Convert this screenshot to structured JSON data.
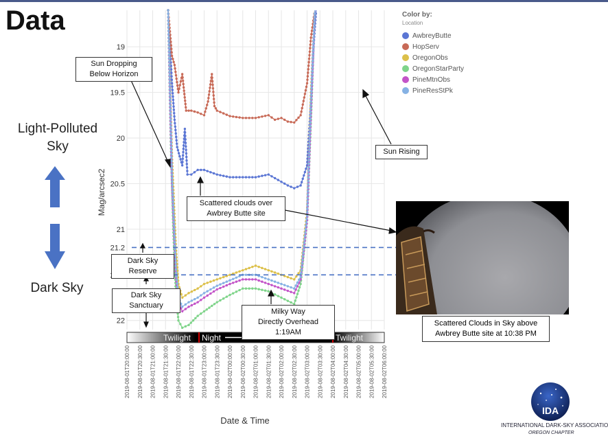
{
  "slide": {
    "title": "Data",
    "left_labels": {
      "top": "Light-Polluted\nSky",
      "bottom": "Dark Sky"
    }
  },
  "callouts": {
    "sun_dropping": "Sun Dropping\nBelow Horizon",
    "sun_rising": "Sun Rising",
    "clouds": "Scattered clouds over\nAwbrey Butte site",
    "reserve": "Dark Sky Reserve",
    "sanctuary": "Dark Sky Sanctuary",
    "milky_way": "Milky Way\nDirectly Overhead 1:19AM",
    "photo_caption": "Scattered Clouds in Sky above\nAwbrey Butte site at 10:38 PM"
  },
  "twilight_bar": {
    "left": "Twilight",
    "middle": "Night",
    "right": "Twilight"
  },
  "thresholds": [
    {
      "label": "21.2",
      "value": 21.2
    },
    {
      "label": "21.5",
      "value": 21.5
    }
  ],
  "logo": {
    "abbr": "IDA",
    "name": "INTERNATIONAL DARK-SKY ASSOCIATION",
    "chapter": "OREGON CHAPTER"
  },
  "colors": {
    "AwbreyButte": "#5b76d4",
    "HopServ": "#c86a57",
    "OregonObs": "#dcc04a",
    "OregonStarParty": "#7fd48a",
    "PineMtnObs": "#c354c8",
    "PineResStPk": "#86b2e4",
    "threshold": "#4a72c4"
  },
  "chart_data": {
    "type": "line",
    "xlabel": "Date & Time",
    "ylabel": "Mag/arcsec2",
    "y_axis": "inverted",
    "ylim": [
      18.6,
      22.1
    ],
    "yticks": [
      19,
      19.5,
      20,
      20.5,
      21,
      22
    ],
    "legend": {
      "title": "Color by:",
      "subtitle": "Location",
      "position": "top-right"
    },
    "x": [
      "2019-08-01T20:00:00",
      "2019-08-01T20:30:00",
      "2019-08-01T21:00:00",
      "2019-08-01T21:30:00",
      "2019-08-01T22:00:00",
      "2019-08-01T22:30:00",
      "2019-08-01T23:00:00",
      "2019-08-01T23:30:00",
      "2019-08-02T00:00:00",
      "2019-08-02T00:30:00",
      "2019-08-02T01:00:00",
      "2019-08-02T01:30:00",
      "2019-08-02T02:00:00",
      "2019-08-02T02:30:00",
      "2019-08-02T03:00:00",
      "2019-08-02T03:30:00",
      "2019-08-02T04:00:00",
      "2019-08-02T04:30:00",
      "2019-08-02T05:00:00",
      "2019-08-02T05:30:00",
      "2019-08-02T06:00:00"
    ],
    "series": [
      {
        "name": "AwbreyButte",
        "color": "#5b76d4",
        "points": [
          [
            3.2,
            18.6
          ],
          [
            3.5,
            19.4
          ],
          [
            3.7,
            19.8
          ],
          [
            3.9,
            20.1
          ],
          [
            4.1,
            20.2
          ],
          [
            4.3,
            20.3
          ],
          [
            4.5,
            19.9
          ],
          [
            4.7,
            20.4
          ],
          [
            5,
            20.4
          ],
          [
            5.5,
            20.35
          ],
          [
            6,
            20.35
          ],
          [
            7,
            20.4
          ],
          [
            8,
            20.43
          ],
          [
            9,
            20.43
          ],
          [
            10,
            20.43
          ],
          [
            11,
            20.4
          ],
          [
            11.5,
            20.44
          ],
          [
            12,
            20.48
          ],
          [
            12.5,
            20.52
          ],
          [
            13,
            20.55
          ],
          [
            13.5,
            20.52
          ],
          [
            14,
            20.3
          ],
          [
            14.3,
            19.6
          ],
          [
            14.5,
            19
          ],
          [
            14.7,
            18.6
          ]
        ]
      },
      {
        "name": "HopServ",
        "color": "#c86a57",
        "points": [
          [
            3.2,
            18.6
          ],
          [
            3.5,
            19.1
          ],
          [
            3.7,
            19.2
          ],
          [
            4,
            19.5
          ],
          [
            4.3,
            19.3
          ],
          [
            4.6,
            19.7
          ],
          [
            5,
            19.7
          ],
          [
            5.5,
            19.72
          ],
          [
            6,
            19.75
          ],
          [
            6.3,
            19.6
          ],
          [
            6.6,
            19.3
          ],
          [
            6.8,
            19.65
          ],
          [
            7,
            19.7
          ],
          [
            8,
            19.76
          ],
          [
            9,
            19.78
          ],
          [
            10,
            19.78
          ],
          [
            11,
            19.75
          ],
          [
            11.5,
            19.8
          ],
          [
            12,
            19.78
          ],
          [
            12.5,
            19.82
          ],
          [
            13,
            19.83
          ],
          [
            13.5,
            19.75
          ],
          [
            14,
            19.4
          ],
          [
            14.3,
            18.9
          ],
          [
            14.6,
            18.6
          ]
        ]
      },
      {
        "name": "OregonObs",
        "color": "#dcc04a",
        "points": [
          [
            3.2,
            18.6
          ],
          [
            3.5,
            20.2
          ],
          [
            3.8,
            21.2
          ],
          [
            4,
            21.6
          ],
          [
            4.3,
            21.75
          ],
          [
            4.8,
            21.7
          ],
          [
            5.5,
            21.65
          ],
          [
            6,
            21.6
          ],
          [
            7,
            21.55
          ],
          [
            8,
            21.5
          ],
          [
            9,
            21.45
          ],
          [
            10,
            21.4
          ],
          [
            11,
            21.45
          ],
          [
            12,
            21.5
          ],
          [
            13,
            21.55
          ],
          [
            13.5,
            21.45
          ],
          [
            14,
            20.8
          ],
          [
            14.3,
            19.5
          ],
          [
            14.6,
            18.6
          ]
        ]
      },
      {
        "name": "OregonStarParty",
        "color": "#7fd48a",
        "points": [
          [
            3.2,
            18.6
          ],
          [
            3.4,
            20
          ],
          [
            3.6,
            21
          ],
          [
            3.8,
            21.7
          ],
          [
            4,
            22
          ],
          [
            4.3,
            22.08
          ],
          [
            4.8,
            22.05
          ],
          [
            5.5,
            21.95
          ],
          [
            6,
            21.9
          ],
          [
            7,
            21.8
          ],
          [
            8,
            21.72
          ],
          [
            9,
            21.65
          ],
          [
            10,
            21.65
          ],
          [
            11,
            21.68
          ],
          [
            12,
            21.75
          ],
          [
            13,
            21.82
          ],
          [
            13.5,
            21.6
          ],
          [
            14,
            20.9
          ],
          [
            14.3,
            19.8
          ],
          [
            14.6,
            18.6
          ]
        ]
      },
      {
        "name": "PineMtnObs",
        "color": "#c354c8",
        "points": [
          [
            3.2,
            18.6
          ],
          [
            3.5,
            20.5
          ],
          [
            3.8,
            21.5
          ],
          [
            4,
            21.8
          ],
          [
            4.3,
            21.9
          ],
          [
            4.8,
            21.85
          ],
          [
            5.5,
            21.8
          ],
          [
            6,
            21.75
          ],
          [
            7,
            21.66
          ],
          [
            8,
            21.6
          ],
          [
            9,
            21.55
          ],
          [
            10,
            21.55
          ],
          [
            11,
            21.6
          ],
          [
            12,
            21.65
          ],
          [
            13,
            21.7
          ],
          [
            13.5,
            21.55
          ],
          [
            14,
            20.9
          ],
          [
            14.3,
            19.7
          ],
          [
            14.6,
            18.6
          ]
        ]
      },
      {
        "name": "PineResStPk",
        "color": "#86b2e4",
        "points": [
          [
            3.2,
            18.6
          ],
          [
            3.5,
            20.4
          ],
          [
            3.8,
            21.4
          ],
          [
            4,
            21.75
          ],
          [
            4.3,
            21.85
          ],
          [
            4.8,
            21.8
          ],
          [
            5.5,
            21.75
          ],
          [
            6,
            21.7
          ],
          [
            7,
            21.62
          ],
          [
            8,
            21.56
          ],
          [
            9,
            21.5
          ],
          [
            10,
            21.5
          ],
          [
            11,
            21.55
          ],
          [
            12,
            21.6
          ],
          [
            13,
            21.65
          ],
          [
            13.5,
            21.52
          ],
          [
            14,
            20.85
          ],
          [
            14.3,
            19.6
          ],
          [
            14.6,
            18.6
          ]
        ]
      }
    ]
  }
}
